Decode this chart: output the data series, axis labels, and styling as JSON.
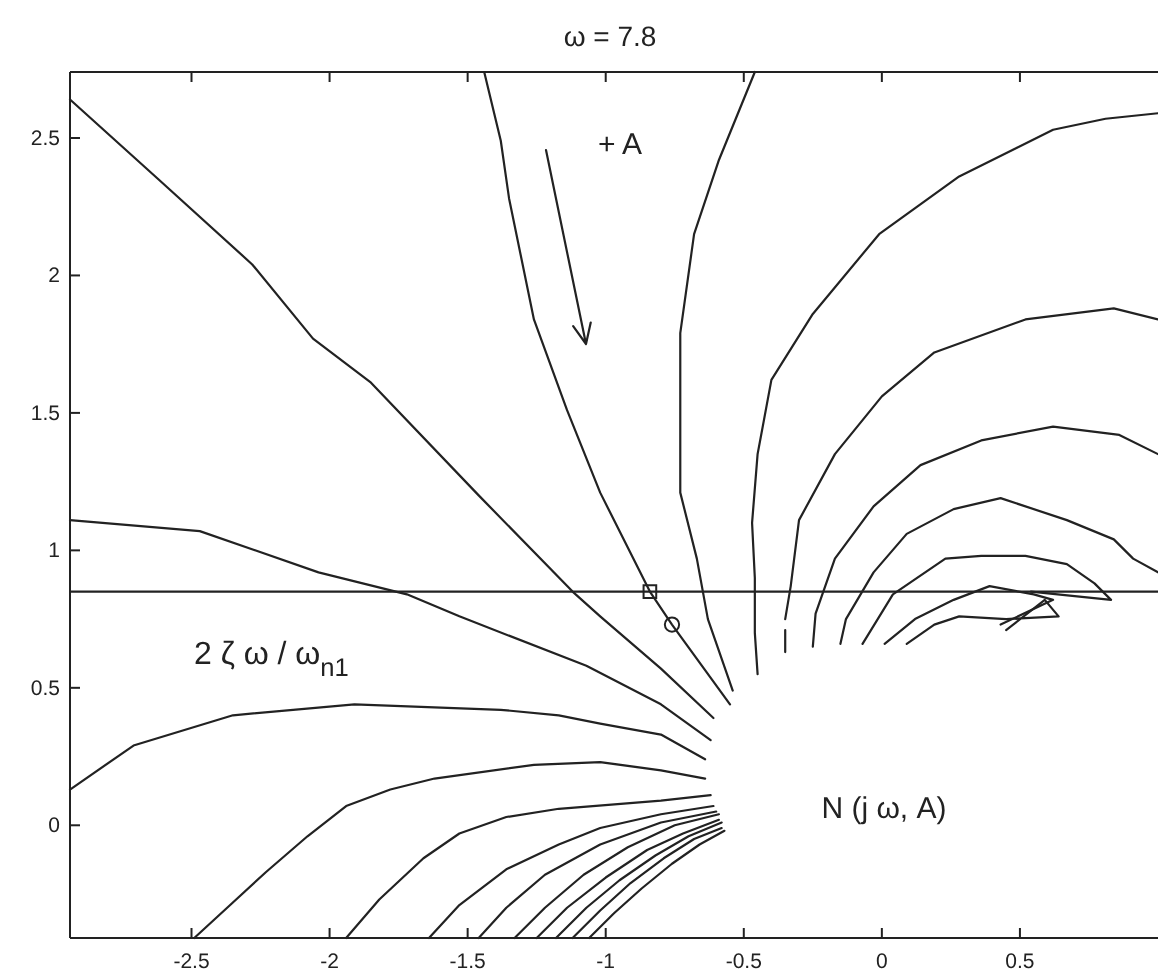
{
  "chart_data": {
    "type": "line",
    "title": "ω = 7.8",
    "xlim": [
      -2.94,
      1.0
    ],
    "xticks": [
      -2.5,
      -2,
      -1.5,
      -1,
      -0.5,
      0,
      0.5
    ],
    "ylim": [
      -0.41,
      2.74
    ],
    "yticks": [
      0,
      0.5,
      1,
      1.5,
      2,
      2.5
    ],
    "line_style": "solid",
    "ref_lines": [
      {
        "axis": "y",
        "value": 0.85,
        "label": "2 ζ ω / ω$_{n1}$"
      }
    ],
    "annotations": [
      "+ A",
      "N (j ω, A)"
    ],
    "series": [
      {
        "color": "#222222",
        "x": [
          -2.94,
          -2.62,
          -2.28,
          -2.06,
          -1.85,
          -1.46,
          -1.12,
          -1.02,
          -0.8,
          -0.61
        ],
        "values": [
          2.64,
          2.35,
          2.04,
          1.77,
          1.61,
          1.2,
          0.85,
          0.76,
          0.57,
          0.39
        ]
      },
      {
        "color": "#222222",
        "x": [
          -1.44,
          -1.38,
          -1.35,
          -1.26,
          -1.14,
          -1.02,
          -0.84,
          -0.76,
          -0.55
        ],
        "values": [
          2.74,
          2.49,
          2.28,
          1.84,
          1.51,
          1.21,
          0.85,
          0.73,
          0.44
        ]
      },
      {
        "color": "#222222",
        "x": [
          -0.46,
          -0.59,
          -0.68,
          -0.73,
          -0.73,
          -0.67,
          -0.63,
          -0.54
        ],
        "values": [
          2.74,
          2.42,
          2.15,
          1.79,
          1.21,
          0.97,
          0.75,
          0.49
        ]
      },
      {
        "color": "#222222",
        "x": [
          1.0,
          0.81,
          0.62,
          0.28,
          -0.01,
          -0.25,
          -0.4,
          -0.45,
          -0.47,
          -0.46,
          -0.46,
          -0.45
        ],
        "values": [
          2.59,
          2.57,
          2.53,
          2.36,
          2.15,
          1.86,
          1.62,
          1.35,
          1.1,
          0.9,
          0.7,
          0.55
        ]
      },
      {
        "color": "#222222",
        "x": [
          1.0,
          0.84,
          0.52,
          0.19,
          0.0,
          -0.17,
          -0.3,
          -0.33,
          -0.35,
          null,
          -0.35,
          -0.35
        ],
        "values": [
          1.84,
          1.88,
          1.84,
          1.72,
          1.56,
          1.35,
          1.11,
          0.87,
          0.75,
          null,
          0.71,
          0.63
        ]
      },
      {
        "color": "#222222",
        "x": [
          1.0,
          0.86,
          0.62,
          0.36,
          0.14,
          -0.03,
          -0.17,
          -0.24,
          -0.25
        ],
        "values": [
          1.35,
          1.42,
          1.45,
          1.4,
          1.31,
          1.16,
          0.97,
          0.77,
          0.65
        ]
      },
      {
        "color": "#222222",
        "x": [
          1.0,
          0.91,
          0.84,
          0.67,
          0.43,
          0.26,
          0.09,
          -0.03,
          -0.13,
          -0.15
        ],
        "values": [
          0.92,
          0.97,
          1.04,
          1.11,
          1.19,
          1.15,
          1.06,
          0.92,
          0.75,
          0.66
        ]
      },
      {
        "color": "#222222",
        "x": [
          0.54,
          0.83,
          0.77,
          0.67,
          0.52,
          0.36,
          0.23,
          0.04,
          -0.07
        ],
        "values": [
          0.85,
          0.82,
          0.88,
          0.95,
          0.98,
          0.98,
          0.97,
          0.84,
          0.66
        ]
      },
      {
        "color": "#222222",
        "x": [
          0.43,
          0.62,
          0.55,
          0.39,
          0.26,
          0.12,
          0.01
        ],
        "values": [
          0.73,
          0.82,
          0.84,
          0.87,
          0.82,
          0.75,
          0.66
        ]
      },
      {
        "color": "#222222",
        "x": [
          0.45,
          0.59,
          0.64,
          0.45,
          0.28,
          0.19,
          0.09
        ],
        "values": [
          0.71,
          0.82,
          0.76,
          0.75,
          0.76,
          0.73,
          0.66
        ]
      },
      {
        "color": "#222222",
        "x": [
          -2.94,
          -2.47,
          -2.04,
          -1.72,
          -1.53,
          -1.07,
          -0.8,
          -0.62
        ],
        "values": [
          1.11,
          1.07,
          0.92,
          0.84,
          0.76,
          0.58,
          0.44,
          0.31
        ]
      },
      {
        "color": "#222222",
        "x": [
          -2.94,
          -2.71,
          -2.35,
          -1.91,
          -1.38,
          -1.17,
          -1.02,
          -0.8,
          -0.64
        ],
        "values": [
          0.13,
          0.29,
          0.4,
          0.44,
          0.42,
          0.4,
          0.37,
          0.33,
          0.24
        ]
      },
      {
        "color": "#222222",
        "x": [
          -2.49,
          -2.36,
          -2.23,
          -2.08,
          -1.94,
          -1.78,
          -1.62,
          -1.26,
          -1.02,
          -0.8,
          -0.64
        ],
        "values": [
          -0.41,
          -0.29,
          -0.17,
          -0.04,
          0.07,
          0.13,
          0.17,
          0.22,
          0.23,
          0.2,
          0.17
        ]
      },
      {
        "color": "#222222",
        "x": [
          -1.94,
          -1.82,
          -1.66,
          -1.53,
          -1.36,
          -1.17,
          -0.8,
          -0.62
        ],
        "values": [
          -0.41,
          -0.27,
          -0.12,
          -0.03,
          0.03,
          0.06,
          0.09,
          0.11
        ]
      },
      {
        "color": "#222222",
        "x": [
          -1.64,
          -1.53,
          -1.36,
          -1.17,
          -1.02,
          -0.8,
          -0.61
        ],
        "values": [
          -0.41,
          -0.29,
          -0.16,
          -0.07,
          -0.01,
          0.04,
          0.07
        ]
      },
      {
        "color": "#222222",
        "x": [
          -1.46,
          -1.36,
          -1.22,
          -1.02,
          -0.8,
          -0.6
        ],
        "values": [
          -0.41,
          -0.3,
          -0.18,
          -0.07,
          0.01,
          0.05
        ]
      },
      {
        "color": "#222222",
        "x": [
          -1.33,
          -1.22,
          -1.08,
          -0.92,
          -0.75,
          -0.59
        ],
        "values": [
          -0.41,
          -0.3,
          -0.18,
          -0.08,
          0.0,
          0.04
        ]
      },
      {
        "color": "#222222",
        "x": [
          -1.25,
          -1.14,
          -1.0,
          -0.85,
          -0.72,
          -0.59
        ],
        "values": [
          -0.41,
          -0.3,
          -0.19,
          -0.09,
          -0.03,
          0.02
        ]
      },
      {
        "color": "#222222",
        "x": [
          -1.18,
          -1.07,
          -0.95,
          -0.82,
          -0.7,
          -0.58
        ],
        "values": [
          -0.41,
          -0.3,
          -0.2,
          -0.11,
          -0.04,
          0.01
        ]
      },
      {
        "color": "#222222",
        "x": [
          -1.12,
          -1.02,
          -0.91,
          -0.79,
          -0.68,
          -0.58
        ],
        "values": [
          -0.41,
          -0.31,
          -0.21,
          -0.12,
          -0.05,
          -0.01
        ]
      },
      {
        "color": "#222222",
        "x": [
          -1.06,
          -0.97,
          -0.87,
          -0.76,
          -0.66,
          -0.57
        ],
        "values": [
          -0.41,
          -0.32,
          -0.23,
          -0.14,
          -0.07,
          -0.02
        ]
      },
      {
        "type": "scatter",
        "marker": "square",
        "color": "#222222",
        "x": [
          -0.84
        ],
        "values": [
          0.85
        ]
      },
      {
        "type": "scatter",
        "marker": "circle",
        "color": "#222222",
        "x": [
          -0.76
        ],
        "values": [
          0.73
        ]
      }
    ]
  }
}
